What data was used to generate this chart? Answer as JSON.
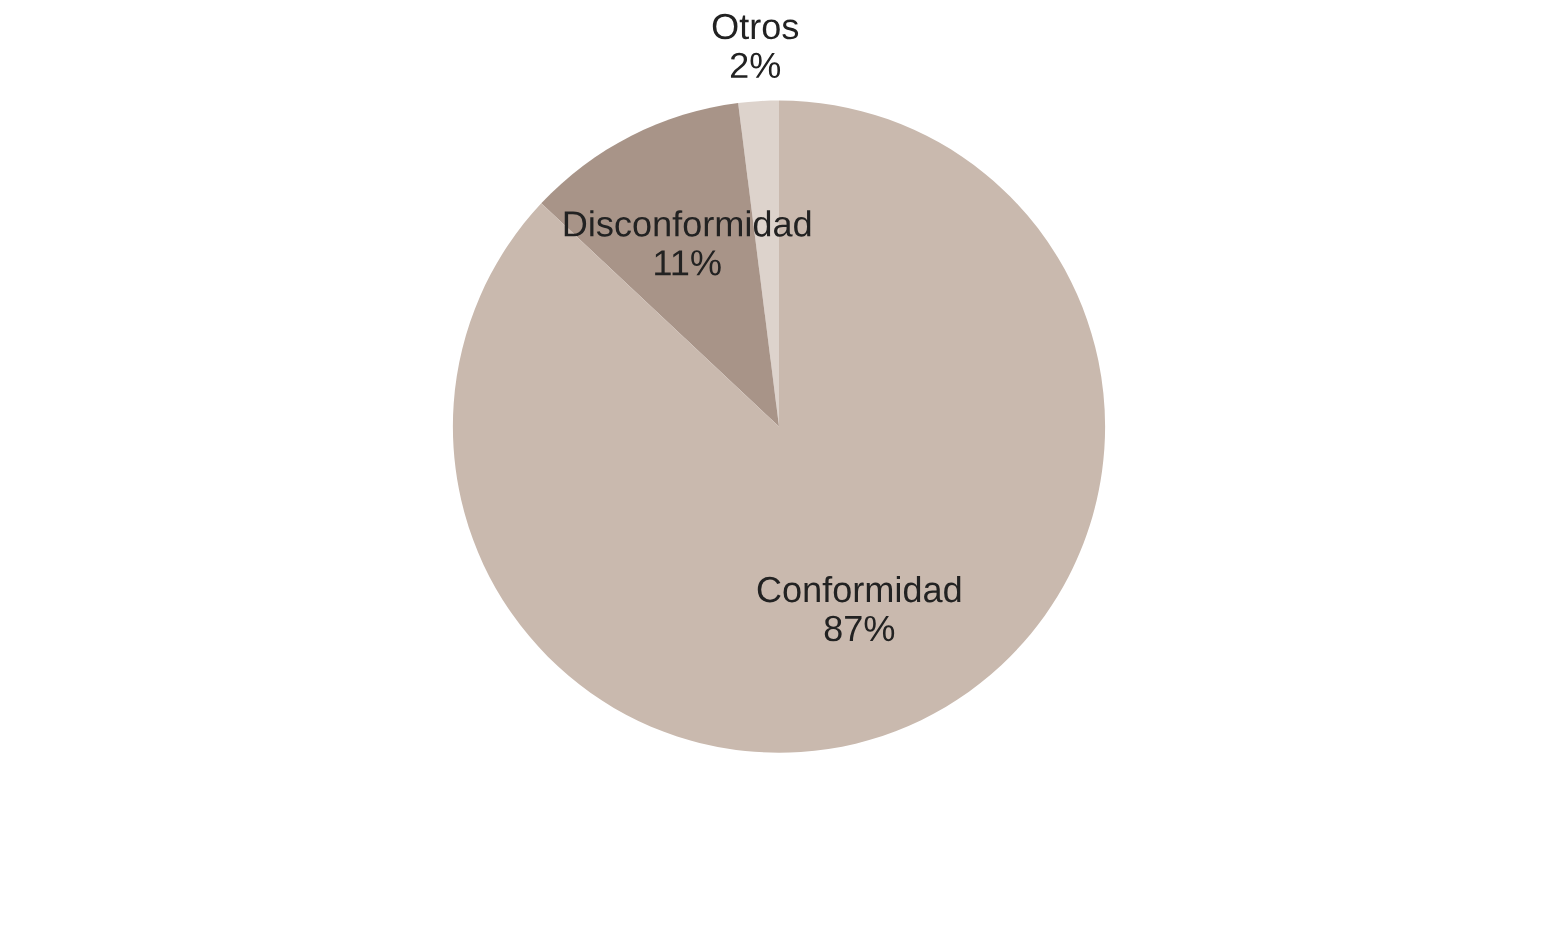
{
  "chart_data": {
    "type": "pie",
    "categories": [
      "Otros",
      "Disconformidad",
      "Conformidad"
    ],
    "values": [
      2,
      11,
      87
    ],
    "value_labels": [
      "2%",
      "11%",
      "87%"
    ],
    "colors": [
      "#ddd3cc",
      "#a89488",
      "#c9b9ae"
    ]
  }
}
